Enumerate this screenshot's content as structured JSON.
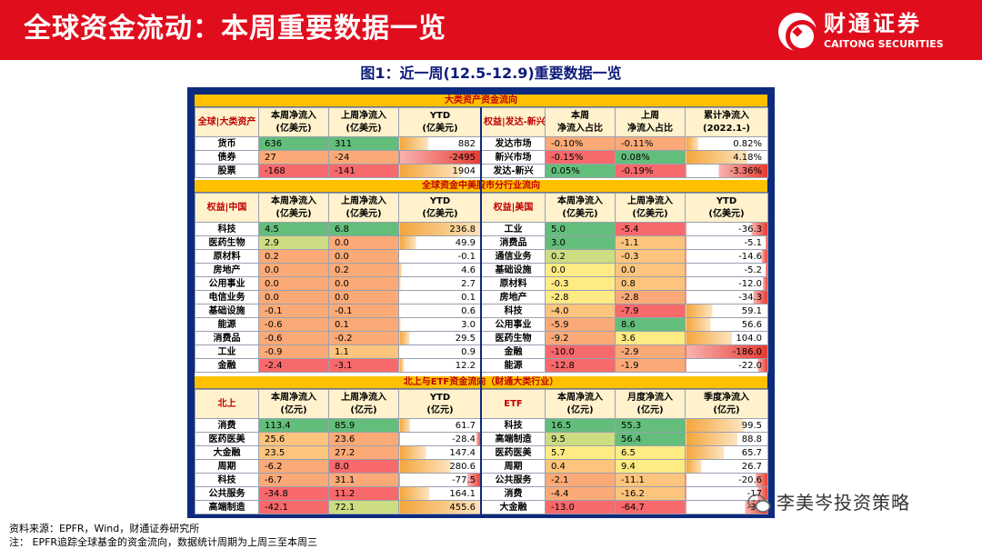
{
  "header": {
    "title": "全球资金流动：本周重要数据一览",
    "logo_cn": "财通证券",
    "logo_en": "CAITONG SECURITIES"
  },
  "figure_title": "图1：近一周(12.5-12.9)重要数据一览",
  "colors": {
    "red_strong": "#f8696b",
    "red_light": "#fbaa77",
    "orange": "#fcc47c",
    "yellow": "#ffeb84",
    "yellowgreen": "#cddd82",
    "green": "#63be7b",
    "header_bar": "#e00d1d",
    "frame": "#0d2a7c"
  },
  "section1": {
    "title": "大类资产资金流向",
    "left": {
      "headers": [
        "全球|大类资产",
        "本周净流入\n(亿美元)",
        "上周净流入\n(亿美元)",
        "YTD\n(亿美元)"
      ],
      "rows": [
        {
          "label": "货币",
          "c1": "636",
          "c2": "311",
          "ytd": "882",
          "bar": 0.35
        },
        {
          "label": "债券",
          "c1": "27",
          "c2": "-24",
          "ytd": "-2495",
          "bar": -1.0
        },
        {
          "label": "股票",
          "c1": "-168",
          "c2": "-141",
          "ytd": "1904",
          "bar": 0.75
        }
      ]
    },
    "right": {
      "headers": [
        "权益|发达-新兴",
        "本周\n净流入占比",
        "上周\n净流入占比",
        "累计净流入\n(2022.1-)"
      ],
      "rows": [
        {
          "label": "发达市场",
          "c1": "-0.10%",
          "c2": "-0.11%",
          "ytd": "0.82%",
          "bar": 0.15
        },
        {
          "label": "新兴市场",
          "c1": "-0.15%",
          "c2": "0.08%",
          "ytd": "4.18%",
          "bar": 0.75
        },
        {
          "label": "发达-新兴",
          "c1": "0.05%",
          "c2": "-0.19%",
          "ytd": "-3.36%",
          "bar": -0.6
        }
      ]
    }
  },
  "section2": {
    "title": "全球资金中美股市分行业流向",
    "left": {
      "headers": [
        "权益|中国",
        "本周净流入\n(亿美元)",
        "上周净流入\n(亿美元)",
        "YTD\n(亿美元)"
      ],
      "rows": [
        {
          "label": "科技",
          "c1": "4.5",
          "c2": "6.8",
          "ytd": "236.8",
          "bar": 1.0
        },
        {
          "label": "医药生物",
          "c1": "2.9",
          "c2": "0.0",
          "ytd": "49.9",
          "bar": 0.2
        },
        {
          "label": "原材料",
          "c1": "0.2",
          "c2": "0.0",
          "ytd": "-0.1",
          "bar": 0
        },
        {
          "label": "房地产",
          "c1": "0.0",
          "c2": "0.2",
          "ytd": "4.6",
          "bar": 0.02
        },
        {
          "label": "公用事业",
          "c1": "0.0",
          "c2": "0.0",
          "ytd": "2.7",
          "bar": 0.01
        },
        {
          "label": "电信业务",
          "c1": "0.0",
          "c2": "0.0",
          "ytd": "0.1",
          "bar": 0
        },
        {
          "label": "基础设施",
          "c1": "-0.1",
          "c2": "-0.1",
          "ytd": "0.6",
          "bar": 0
        },
        {
          "label": "能源",
          "c1": "-0.6",
          "c2": "0.1",
          "ytd": "3.0",
          "bar": 0.01
        },
        {
          "label": "消费品",
          "c1": "-0.6",
          "c2": "-0.2",
          "ytd": "29.5",
          "bar": 0.12
        },
        {
          "label": "工业",
          "c1": "-0.9",
          "c2": "1.1",
          "ytd": "0.9",
          "bar": 0
        },
        {
          "label": "金融",
          "c1": "-2.4",
          "c2": "-3.1",
          "ytd": "12.2",
          "bar": 0.05
        }
      ]
    },
    "right": {
      "headers": [
        "权益|美国",
        "本周净流入\n(亿美元)",
        "上周净流入\n(亿美元)",
        "YTD\n(亿美元)"
      ],
      "rows": [
        {
          "label": "工业",
          "c1": "5.0",
          "c2": "-5.4",
          "ytd": "-36.3",
          "bar": -0.2
        },
        {
          "label": "消费品",
          "c1": "3.0",
          "c2": "-1.1",
          "ytd": "-5.1",
          "bar": -0.03
        },
        {
          "label": "通信业务",
          "c1": "0.2",
          "c2": "-0.3",
          "ytd": "-14.6",
          "bar": -0.08
        },
        {
          "label": "基础设施",
          "c1": "0.0",
          "c2": "0.0",
          "ytd": "-5.2",
          "bar": -0.03
        },
        {
          "label": "原材料",
          "c1": "-0.3",
          "c2": "0.8",
          "ytd": "-12.0",
          "bar": -0.06
        },
        {
          "label": "房地产",
          "c1": "-2.8",
          "c2": "-2.8",
          "ytd": "-34.3",
          "bar": -0.18
        },
        {
          "label": "科技",
          "c1": "-4.0",
          "c2": "-7.9",
          "ytd": "59.1",
          "bar": 0.32
        },
        {
          "label": "公用事业",
          "c1": "-5.9",
          "c2": "8.6",
          "ytd": "56.6",
          "bar": 0.3
        },
        {
          "label": "医药生物",
          "c1": "-9.2",
          "c2": "3.6",
          "ytd": "104.0",
          "bar": 0.56
        },
        {
          "label": "金融",
          "c1": "-10.0",
          "c2": "-2.9",
          "ytd": "-186.0",
          "bar": -1.0
        },
        {
          "label": "能源",
          "c1": "-12.8",
          "c2": "-1.9",
          "ytd": "-22.0",
          "bar": -0.12
        }
      ]
    }
  },
  "section3": {
    "title": "北上与ETF资金流向（财通大类行业）",
    "left": {
      "headers": [
        "北上",
        "本周净流入\n(亿元)",
        "上周净流入\n(亿元)",
        "YTD\n(亿元)"
      ],
      "rows": [
        {
          "label": "消费",
          "c1": "113.4",
          "c2": "85.9",
          "ytd": "61.7",
          "bar": 0.13
        },
        {
          "label": "医药医美",
          "c1": "25.6",
          "c2": "23.6",
          "ytd": "-28.4",
          "bar": -0.06
        },
        {
          "label": "大金融",
          "c1": "23.5",
          "c2": "27.2",
          "ytd": "147.4",
          "bar": 0.32
        },
        {
          "label": "周期",
          "c1": "-6.2",
          "c2": "8.0",
          "ytd": "280.6",
          "bar": 0.62
        },
        {
          "label": "科技",
          "c1": "-6.7",
          "c2": "31.1",
          "ytd": "-77.5",
          "bar": -0.17
        },
        {
          "label": "公共服务",
          "c1": "-34.8",
          "c2": "11.2",
          "ytd": "164.1",
          "bar": 0.36
        },
        {
          "label": "高端制造",
          "c1": "-42.1",
          "c2": "72.1",
          "ytd": "455.6",
          "bar": 1.0
        }
      ]
    },
    "right": {
      "headers": [
        "ETF",
        "本周净流入\n(亿元)",
        "月度净流入\n(亿元)",
        "季度净流入\n(亿元)"
      ],
      "rows": [
        {
          "label": "科技",
          "c1": "16.5",
          "c2": "55.3",
          "ytd": "99.5",
          "bar": 0.7
        },
        {
          "label": "高端制造",
          "c1": "9.5",
          "c2": "56.4",
          "ytd": "88.8",
          "bar": 0.63
        },
        {
          "label": "医药医美",
          "c1": "5.7",
          "c2": "6.5",
          "ytd": "65.7",
          "bar": 0.46
        },
        {
          "label": "周期",
          "c1": "0.4",
          "c2": "9.4",
          "ytd": "26.7",
          "bar": 0.19
        },
        {
          "label": "公共服务",
          "c1": "-2.1",
          "c2": "-11.1",
          "ytd": "-20.6",
          "bar": -0.15
        },
        {
          "label": "消费",
          "c1": "-4.4",
          "c2": "-16.2",
          "ytd": "-17",
          "bar": -0.12
        },
        {
          "label": "大金融",
          "c1": "-13.0",
          "c2": "-64.7",
          "ytd": "-39",
          "bar": -0.28
        }
      ]
    }
  },
  "source_line": "资料来源：EPFR，Wind，财通证券研究所",
  "note_line": "注：  EPFR追踪全球基金的资金流向，数据统计周期为上周三至本周三",
  "watermark": "李美岑投资策略"
}
